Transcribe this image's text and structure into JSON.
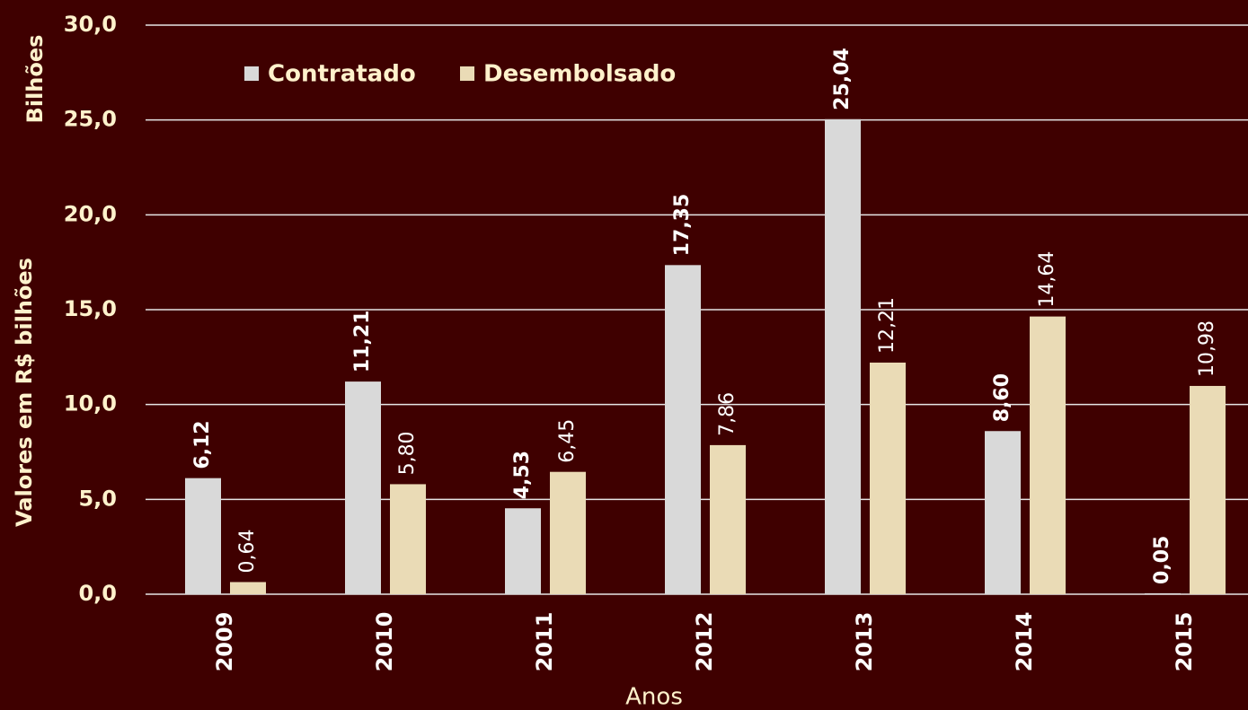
{
  "chart_data": {
    "type": "bar",
    "y_axis_label": "Valores em R$ bilhões",
    "y_unit_label": "Bilhões",
    "x_axis_label": "Anos",
    "categories": [
      "2009",
      "2010",
      "2011",
      "2012",
      "2013",
      "2014",
      "2015"
    ],
    "series": [
      {
        "name": "Contratado",
        "color": "#d9d9d9",
        "values": [
          6.12,
          11.21,
          4.53,
          17.35,
          25.04,
          8.6,
          0.05
        ],
        "value_labels": [
          "6,12",
          "11,21",
          "4,53",
          "17,35",
          "25,04",
          "8,60",
          "0,05"
        ]
      },
      {
        "name": "Desembolsado",
        "color": "#eadbb6",
        "values": [
          0.64,
          5.8,
          6.45,
          7.86,
          12.21,
          14.64,
          10.98
        ],
        "value_labels": [
          "0,64",
          "5,80",
          "6,45",
          "7,86",
          "12,21",
          "14,64",
          "10,98"
        ]
      }
    ],
    "ylim": [
      0,
      30
    ],
    "yticks": [
      {
        "value": 0,
        "label": "0,0"
      },
      {
        "value": 5,
        "label": "5,0"
      },
      {
        "value": 10,
        "label": "10,0"
      },
      {
        "value": 15,
        "label": "15,0"
      },
      {
        "value": 20,
        "label": "20,0"
      },
      {
        "value": 25,
        "label": "25,0"
      },
      {
        "value": 30,
        "label": "30,0"
      }
    ],
    "grid": true,
    "legend": "top"
  }
}
